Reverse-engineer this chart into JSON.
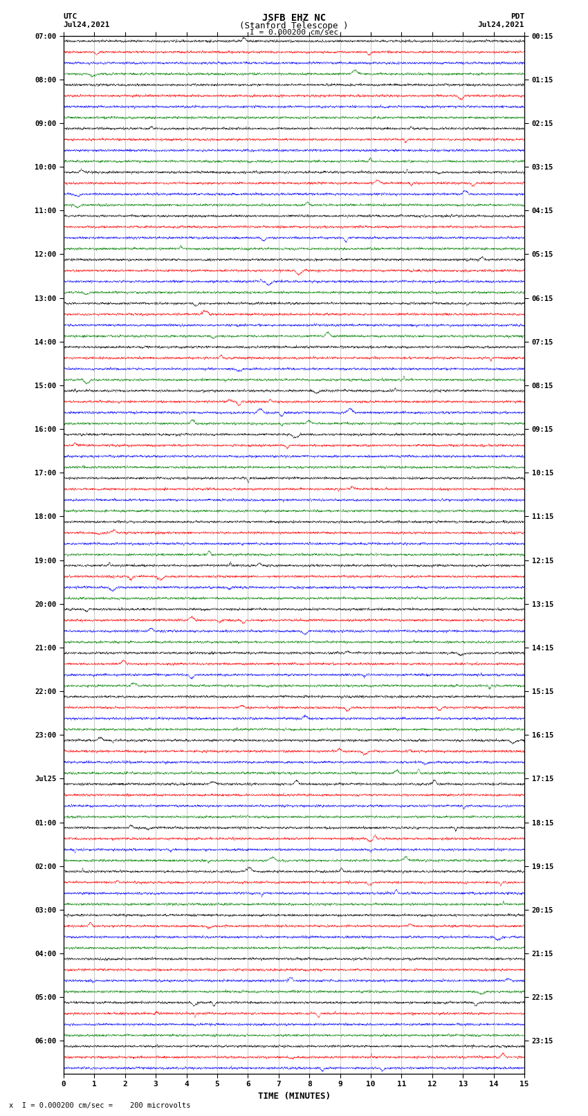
{
  "title_line1": "JSFB EHZ NC",
  "title_line2": "(Stanford Telescope )",
  "scale_text": "I = 0.000200 cm/sec",
  "left_label": "UTC",
  "left_date": "Jul24,2021",
  "right_label": "PDT",
  "right_date": "Jul24,2021",
  "xlabel": "TIME (MINUTES)",
  "footer_text": "x  I = 0.000200 cm/sec =    200 microvolts",
  "xlim": [
    0,
    15
  ],
  "xticks": [
    0,
    1,
    2,
    3,
    4,
    5,
    6,
    7,
    8,
    9,
    10,
    11,
    12,
    13,
    14,
    15
  ],
  "utc_labels": [
    "07:00",
    "",
    "",
    "",
    "08:00",
    "",
    "",
    "",
    "09:00",
    "",
    "",
    "",
    "10:00",
    "",
    "",
    "",
    "11:00",
    "",
    "",
    "",
    "12:00",
    "",
    "",
    "",
    "13:00",
    "",
    "",
    "",
    "14:00",
    "",
    "",
    "",
    "15:00",
    "",
    "",
    "",
    "16:00",
    "",
    "",
    "",
    "17:00",
    "",
    "",
    "",
    "18:00",
    "",
    "",
    "",
    "19:00",
    "",
    "",
    "",
    "20:00",
    "",
    "",
    "",
    "21:00",
    "",
    "",
    "",
    "22:00",
    "",
    "",
    "",
    "23:00",
    "",
    "",
    "",
    "Jul25",
    "",
    "",
    "",
    "01:00",
    "",
    "",
    "",
    "02:00",
    "",
    "",
    "",
    "03:00",
    "",
    "",
    "",
    "04:00",
    "",
    "",
    "",
    "05:00",
    "",
    "",
    "",
    "06:00",
    "",
    ""
  ],
  "pdt_labels": [
    "00:15",
    "",
    "",
    "",
    "01:15",
    "",
    "",
    "",
    "02:15",
    "",
    "",
    "",
    "03:15",
    "",
    "",
    "",
    "04:15",
    "",
    "",
    "",
    "05:15",
    "",
    "",
    "",
    "06:15",
    "",
    "",
    "",
    "07:15",
    "",
    "",
    "",
    "08:15",
    "",
    "",
    "",
    "09:15",
    "",
    "",
    "",
    "10:15",
    "",
    "",
    "",
    "11:15",
    "",
    "",
    "",
    "12:15",
    "",
    "",
    "",
    "13:15",
    "",
    "",
    "",
    "14:15",
    "",
    "",
    "",
    "15:15",
    "",
    "",
    "",
    "16:15",
    "",
    "",
    "",
    "17:15",
    "",
    "",
    "",
    "18:15",
    "",
    "",
    "",
    "19:15",
    "",
    "",
    "",
    "20:15",
    "",
    "",
    "",
    "21:15",
    "",
    "",
    "",
    "22:15",
    "",
    "",
    "",
    "23:15",
    "",
    ""
  ],
  "trace_colors": [
    "black",
    "red",
    "blue",
    "green"
  ],
  "bg_color": "white",
  "trace_amplitude": 0.09,
  "noise_seed": 42
}
